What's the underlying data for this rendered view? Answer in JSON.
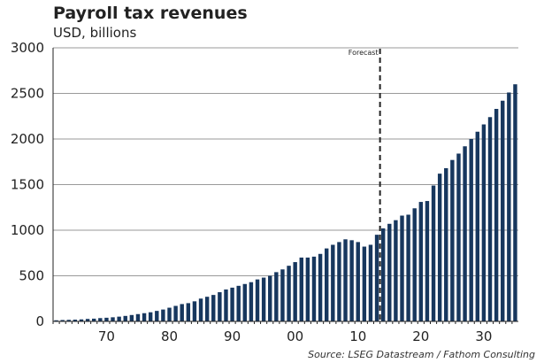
{
  "chart_data": {
    "type": "bar",
    "title": "Payroll tax revenues",
    "subtitle": "USD, billions",
    "source": "Source: LSEG Datastream / Fathom Consulting",
    "ylim": [
      0,
      3000
    ],
    "yticks": [
      0,
      500,
      1000,
      1500,
      2000,
      2500,
      3000
    ],
    "xtick_labels": [
      {
        "year": 1970,
        "label": "70"
      },
      {
        "year": 1980,
        "label": "80"
      },
      {
        "year": 1990,
        "label": "90"
      },
      {
        "year": 2000,
        "label": "00"
      },
      {
        "year": 2010,
        "label": "10"
      },
      {
        "year": 2020,
        "label": "20"
      },
      {
        "year": 2030,
        "label": "30"
      }
    ],
    "grid": true,
    "bar_color": "#17375e",
    "forecast_marker": {
      "year": 2013.5,
      "label": "Forecast"
    },
    "x": [
      1962,
      1963,
      1964,
      1965,
      1966,
      1967,
      1968,
      1969,
      1970,
      1971,
      1972,
      1973,
      1974,
      1975,
      1976,
      1977,
      1978,
      1979,
      1980,
      1981,
      1982,
      1983,
      1984,
      1985,
      1986,
      1987,
      1988,
      1989,
      1990,
      1991,
      1992,
      1993,
      1994,
      1995,
      1996,
      1997,
      1998,
      1999,
      2000,
      2001,
      2002,
      2003,
      2004,
      2005,
      2006,
      2007,
      2008,
      2009,
      2010,
      2011,
      2012,
      2013,
      2014,
      2015,
      2016,
      2017,
      2018,
      2019,
      2020,
      2021,
      2022,
      2023,
      2024,
      2025,
      2026,
      2027,
      2028,
      2029,
      2030,
      2031,
      2032,
      2033,
      2034,
      2035
    ],
    "values": [
      12,
      15,
      17,
      19,
      22,
      27,
      30,
      36,
      40,
      45,
      52,
      60,
      70,
      80,
      90,
      100,
      115,
      130,
      150,
      170,
      190,
      200,
      220,
      250,
      270,
      290,
      320,
      350,
      370,
      390,
      410,
      430,
      460,
      480,
      500,
      540,
      570,
      610,
      650,
      700,
      700,
      710,
      740,
      800,
      840,
      870,
      900,
      890,
      870,
      820,
      840,
      950,
      1020,
      1070,
      1110,
      1160,
      1170,
      1240,
      1310,
      1320,
      1490,
      1620,
      1680,
      1770,
      1840,
      1920,
      2000,
      2080,
      2160,
      2240,
      2330,
      2420,
      2510,
      2600
    ]
  }
}
